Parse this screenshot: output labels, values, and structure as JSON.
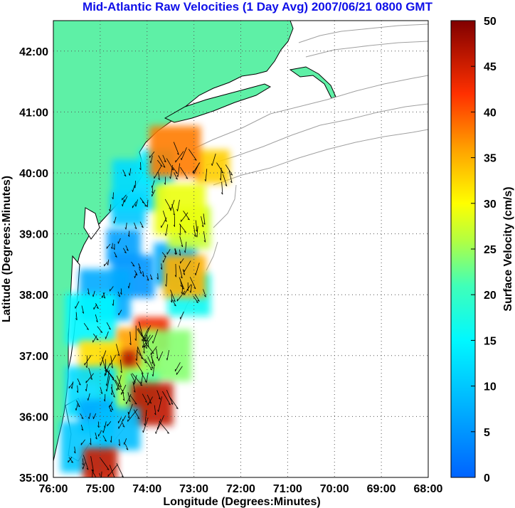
{
  "title": "Mid-Atlantic Raw Velocities (1 Day Avg) 2007/06/21 0800 GMT",
  "axes": {
    "xlabel": "Longitude (Degrees:Minutes)",
    "ylabel": "Latitude (Degrees:Minutes)",
    "x_ticks": [
      "76:00",
      "75:00",
      "74:00",
      "73:00",
      "72:00",
      "71:00",
      "70:00",
      "69:00",
      "68:00"
    ],
    "y_ticks": [
      "42:00",
      "41:00",
      "40:00",
      "39:00",
      "38:00",
      "37:00",
      "36:00",
      "35:00"
    ],
    "xlim": [
      -76,
      -68
    ],
    "ylim": [
      35,
      42.5
    ],
    "grid": true
  },
  "colorbar": {
    "label": "Surface Velocity (cm/s)",
    "ticks": [
      "0",
      "5",
      "10",
      "15",
      "20",
      "25",
      "30",
      "35",
      "40",
      "45",
      "50"
    ],
    "range": [
      0,
      50
    ]
  },
  "colors": {
    "title": "#1010e8",
    "land": "#5ef0a6",
    "coast": "#000000",
    "bathymetry": "#a0a0a0",
    "grid": "#555555"
  },
  "velocity_blobs": [
    {
      "lon": -74.5,
      "lat": 38.8,
      "speed": 6
    },
    {
      "lon": -74.3,
      "lat": 38.3,
      "speed": 5
    },
    {
      "lon": -74.9,
      "lat": 38.0,
      "speed": 7
    },
    {
      "lon": -74.4,
      "lat": 39.4,
      "speed": 10
    },
    {
      "lon": -73.4,
      "lat": 38.5,
      "speed": 7
    },
    {
      "lon": -74.2,
      "lat": 39.8,
      "speed": 12
    },
    {
      "lon": -73.8,
      "lat": 40.1,
      "speed": 14
    },
    {
      "lon": -73.1,
      "lat": 39.1,
      "speed": 27
    },
    {
      "lon": -73.3,
      "lat": 39.4,
      "speed": 29
    },
    {
      "lon": -72.6,
      "lat": 40.1,
      "speed": 33
    },
    {
      "lon": -73.1,
      "lat": 38.0,
      "speed": 16
    },
    {
      "lon": -75.2,
      "lat": 37.6,
      "speed": 15
    },
    {
      "lon": -73.9,
      "lat": 37.35,
      "speed": 43
    },
    {
      "lon": -74.2,
      "lat": 37.1,
      "speed": 36
    },
    {
      "lon": -73.6,
      "lat": 37.0,
      "speed": 24
    },
    {
      "lon": -74.6,
      "lat": 36.8,
      "speed": 47
    },
    {
      "lon": -75.0,
      "lat": 36.9,
      "speed": 32
    },
    {
      "lon": -74.5,
      "lat": 36.4,
      "speed": 26
    },
    {
      "lon": -74.1,
      "lat": 36.45,
      "speed": 22
    },
    {
      "lon": -73.9,
      "lat": 36.2,
      "speed": 46
    },
    {
      "lon": -75.2,
      "lat": 36.4,
      "speed": 12
    },
    {
      "lon": -75.1,
      "lat": 36.0,
      "speed": 7
    },
    {
      "lon": -74.6,
      "lat": 35.8,
      "speed": 9
    },
    {
      "lon": -75.3,
      "lat": 35.5,
      "speed": 10
    },
    {
      "lon": -75.0,
      "lat": 35.2,
      "speed": 45
    },
    {
      "lon": -73.2,
      "lat": 38.3,
      "speed": 35
    },
    {
      "lon": -73.4,
      "lat": 40.35,
      "speed": 38
    }
  ]
}
